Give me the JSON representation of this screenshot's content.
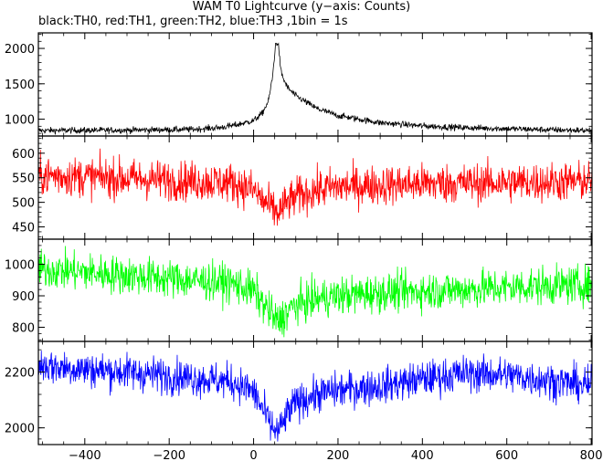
{
  "title": "WAM T0 Lightcurve (y−axis: Counts)",
  "subtitle": "black:TH0, red:TH1, green:TH2, blue:TH3 ,1bin = 1s",
  "chart_data": {
    "type": "line",
    "xlim": [
      -510,
      802
    ],
    "x_ticks": [
      -400,
      -200,
      0,
      200,
      400,
      600,
      800
    ],
    "x_tick_labels": [
      "−400",
      "−200",
      "0",
      "200",
      "400",
      "600",
      "800"
    ],
    "bin_seconds": 1,
    "panels": [
      {
        "name": "TH0",
        "color": "#000000",
        "ylim": [
          762,
          2220
        ],
        "y_ticks": [
          1000,
          1500,
          2000
        ],
        "y_tick_labels": [
          "1000",
          "1500",
          "2000"
        ],
        "profile": {
          "x": [
            -510,
            -300,
            -150,
            -80,
            -40,
            0,
            20,
            35,
            45,
            52,
            56,
            60,
            64,
            70,
            80,
            100,
            150,
            200,
            300,
            400,
            500,
            600,
            700,
            802
          ],
          "y": [
            840,
            845,
            855,
            880,
            920,
            980,
            1080,
            1250,
            1600,
            2050,
            2090,
            2000,
            1700,
            1580,
            1450,
            1330,
            1150,
            1050,
            950,
            905,
            880,
            865,
            850,
            840
          ]
        },
        "noise": 22
      },
      {
        "name": "TH1",
        "color": "#ff0000",
        "ylim": [
          425,
          635
        ],
        "y_ticks": [
          450,
          500,
          550,
          600
        ],
        "y_tick_labels": [
          "450",
          "500",
          "550",
          "600"
        ],
        "profile": {
          "x": [
            -510,
            -400,
            -200,
            -50,
            0,
            20,
            40,
            55,
            65,
            80,
            110,
            150,
            200,
            400,
            600,
            802
          ],
          "y": [
            555,
            552,
            545,
            540,
            525,
            505,
            490,
            478,
            485,
            500,
            515,
            525,
            532,
            538,
            540,
            543
          ]
        },
        "noise": 20
      },
      {
        "name": "TH2",
        "color": "#00ff00",
        "ylim": [
          755,
          1080
        ],
        "y_ticks": [
          800,
          900,
          1000
        ],
        "y_tick_labels": [
          "800",
          "900",
          "1000"
        ],
        "profile": {
          "x": [
            -510,
            -400,
            -300,
            -150,
            -50,
            0,
            20,
            40,
            55,
            65,
            80,
            100,
            150,
            200,
            300,
            500,
            650,
            802
          ],
          "y": [
            985,
            975,
            965,
            950,
            940,
            915,
            880,
            845,
            818,
            825,
            850,
            870,
            890,
            900,
            910,
            920,
            930,
            935
          ]
        },
        "noise": 30
      },
      {
        "name": "TH3",
        "color": "#0000ff",
        "ylim": [
          1940,
          2310
        ],
        "y_ticks": [
          2000,
          2200
        ],
        "y_tick_labels": [
          "2000",
          "2200"
        ],
        "profile": {
          "x": [
            -510,
            -400,
            -300,
            -150,
            -50,
            0,
            20,
            40,
            55,
            65,
            80,
            100,
            150,
            200,
            300,
            400,
            500,
            600,
            700,
            802
          ],
          "y": [
            2225,
            2210,
            2200,
            2180,
            2165,
            2130,
            2070,
            2010,
            1985,
            2000,
            2050,
            2090,
            2120,
            2135,
            2150,
            2175,
            2195,
            2190,
            2170,
            2150
          ]
        },
        "noise": 32
      }
    ]
  }
}
